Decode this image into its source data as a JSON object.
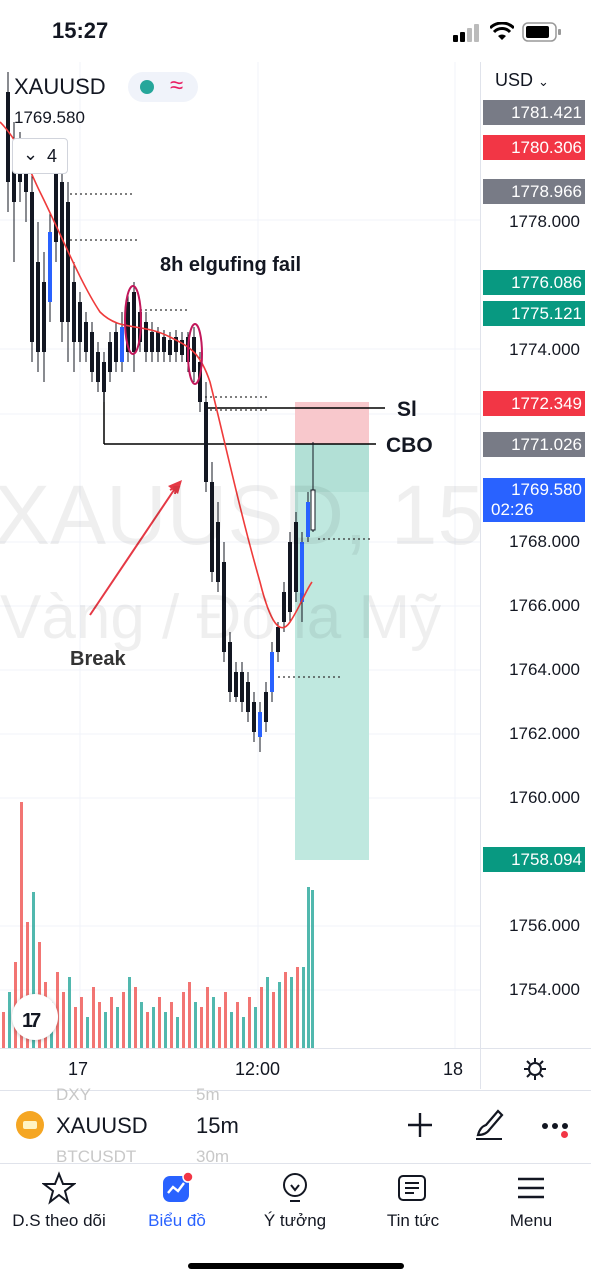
{
  "status": {
    "time": "15:27"
  },
  "symbol": {
    "name": "XAUUSD",
    "last_price": "1769.580",
    "collapsed_count": "4"
  },
  "currency": "USD",
  "watermark": {
    "ticker": "XAUUSD, 15",
    "description": "Vàng / Đô la Mỹ"
  },
  "annotations": {
    "fail": "8h elgufing fail",
    "sl": "Sl",
    "cbo": "CBO",
    "break": "Break"
  },
  "price_tags": {
    "t1": "1781.421",
    "t2": "1780.306",
    "t3": "1778.966",
    "t4": "1776.086",
    "t5": "1775.121",
    "t6": "1772.349",
    "t7": "1771.026",
    "t8": "1769.580",
    "t8_countdown": "02:26",
    "t9": "1758.094"
  },
  "price_labels": [
    "1778.000",
    "1774.000",
    "1768.000",
    "1766.000",
    "1764.000",
    "1762.000",
    "1760.000",
    "1756.000",
    "1754.000"
  ],
  "time_axis": [
    "17",
    "12:00",
    "18"
  ],
  "toolbar": {
    "symbol": "XAUUSD",
    "interval": "15m",
    "peek_symbol_1": "DXY",
    "peek_interval_1": "5m",
    "peek_symbol_2": "BTCUSDT",
    "peek_interval_2": "30m"
  },
  "nav": {
    "watchlist": "D.S theo dõi",
    "chart": "Biểu đồ",
    "ideas": "Ý tưởng",
    "news": "Tin tức",
    "menu": "Menu"
  },
  "colors": {
    "up": "#26a69a",
    "down": "#ef5350",
    "accent": "#2962ff",
    "sl_zone": "#f8c8cc",
    "tp_zone": "#bfe8df"
  }
}
